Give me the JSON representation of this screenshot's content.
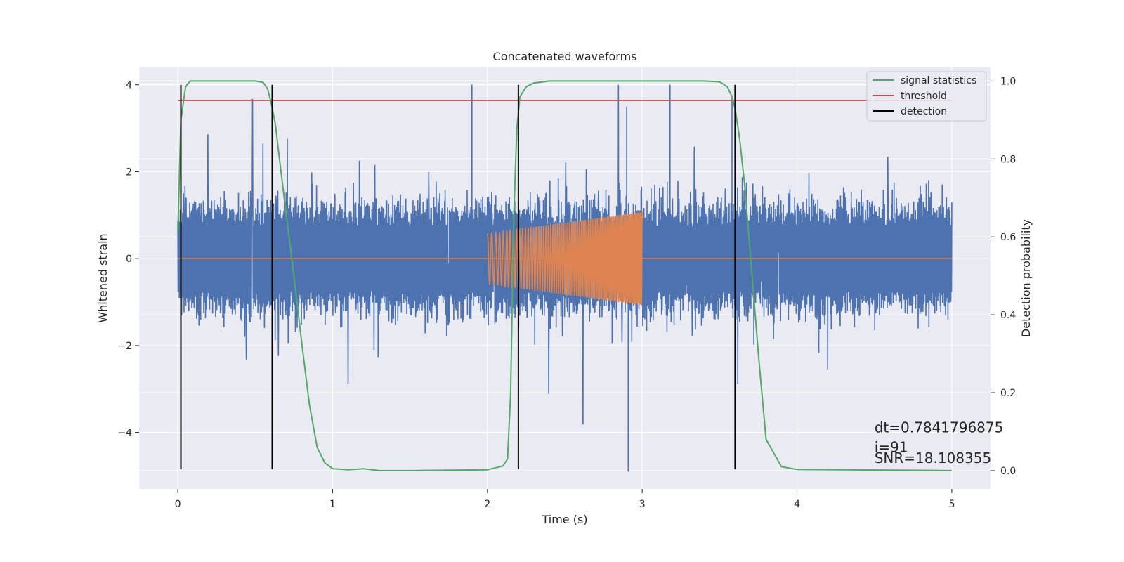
{
  "chart_data": {
    "type": "line",
    "title": "Concatenated waveforms",
    "xlabel": "Time (s)",
    "ylabel": "Whitened strain",
    "y2label": "Detection probability",
    "xlim": [
      -0.25,
      5.25
    ],
    "ylim": [
      -5.3,
      4.4
    ],
    "y2lim": [
      -0.047,
      1.035
    ],
    "x_ticks": [
      0,
      1,
      2,
      3,
      4,
      5
    ],
    "y_ticks": [
      -4,
      -2,
      0,
      2,
      4
    ],
    "y_tick_labels": [
      "−4",
      "−2",
      "0",
      "2",
      "4"
    ],
    "y2_ticks": [
      0.0,
      0.2,
      0.4,
      0.6,
      0.8,
      1.0
    ],
    "y2_tick_labels": [
      "0.0",
      "0.2",
      "0.4",
      "0.6",
      "0.8",
      "1.0"
    ],
    "grid": true,
    "legend_position": "top-right",
    "series": [
      {
        "name": "",
        "kind": "noise-strain",
        "axis": "left",
        "color": "#4c72b0",
        "x_range": [
          0,
          5
        ],
        "typical_range": [
          -1.3,
          1.3
        ],
        "max": 4.0,
        "min": -4.9
      },
      {
        "name": "",
        "kind": "chirp-injection",
        "axis": "left",
        "color": "#dd8452",
        "x_range": [
          2,
          3
        ],
        "amplitude_start": 0.58,
        "amplitude_end": 1.08
      },
      {
        "name": "signal statistics",
        "axis": "right",
        "color": "#55a868",
        "x": [
          0.0,
          0.02,
          0.05,
          0.08,
          0.12,
          0.5,
          0.55,
          0.58,
          0.6,
          0.63,
          0.66,
          0.7,
          0.75,
          0.8,
          0.85,
          0.9,
          0.95,
          1.0,
          1.1,
          1.2,
          1.3,
          1.5,
          2.0,
          2.1,
          2.13,
          2.15,
          2.17,
          2.19,
          2.21,
          2.25,
          2.3,
          2.4,
          2.5,
          3.4,
          3.5,
          3.55,
          3.58,
          3.6,
          3.63,
          3.66,
          3.7,
          3.75,
          3.8,
          3.9,
          4.0,
          5.0
        ],
        "values": [
          0.61,
          0.9,
          0.985,
          1.0,
          1.0,
          1.0,
          0.997,
          0.98,
          0.95,
          0.89,
          0.79,
          0.66,
          0.5,
          0.33,
          0.17,
          0.06,
          0.02,
          0.005,
          0.002,
          0.005,
          0.0,
          0.0,
          0.002,
          0.012,
          0.03,
          0.2,
          0.65,
          0.88,
          0.96,
          0.985,
          0.995,
          1.0,
          1.0,
          1.0,
          0.998,
          0.985,
          0.96,
          0.93,
          0.85,
          0.74,
          0.55,
          0.3,
          0.08,
          0.01,
          0.003,
          0.0
        ]
      },
      {
        "name": "threshold",
        "axis": "right",
        "color": "#c44e52",
        "x": [
          0,
          5
        ],
        "values": [
          0.95,
          0.95
        ]
      }
    ],
    "detection": {
      "name": "detection",
      "color": "#000000",
      "x": [
        0.02,
        0.61,
        2.2,
        3.6
      ],
      "y_range": [
        -4.85,
        4.0
      ]
    },
    "annotations": [
      {
        "text": "dt=0.7841796875",
        "x": 4.5,
        "y": -4.0
      },
      {
        "text": " i=91",
        "x": 4.5,
        "y": -4.45
      },
      {
        "text": "SNR=18.108355",
        "x": 4.5,
        "y": -4.7
      }
    ]
  }
}
